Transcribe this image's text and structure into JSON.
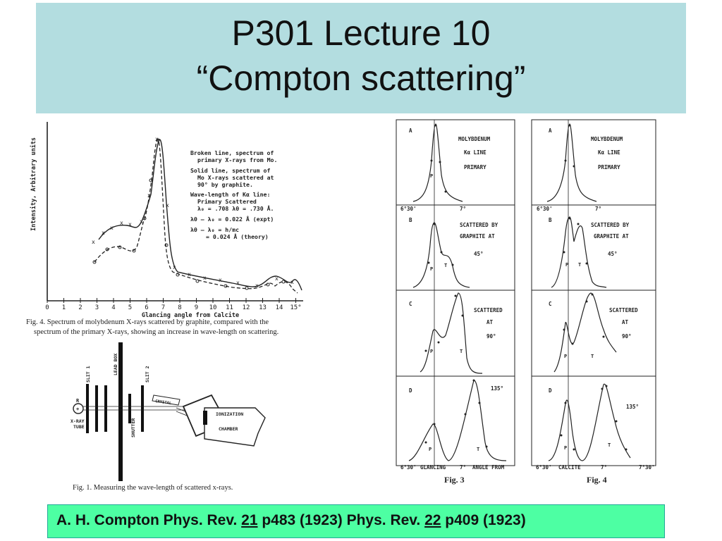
{
  "slide": {
    "title_line1": "P301 Lecture 10",
    "title_line2": "“Compton scattering”"
  },
  "spectrum_plot": {
    "y_axis_label": "Intensity, Arbitrary units",
    "x_axis_label": "Glancing angle from Calcite",
    "x_ticks": [
      "0",
      "1",
      "2",
      "3",
      "4",
      "5",
      "6",
      "7",
      "8",
      "9",
      "10",
      "11",
      "12",
      "13",
      "14",
      "15°"
    ],
    "legend": [
      "Broken line, spectrum of",
      "primary X-rays from Mo.",
      "Solid line, spectrum of",
      "Mo X-rays scattered at",
      "90° by graphite.",
      "Wave-length of Kα line:",
      "Primary   Scattered",
      "λ₀ = .708   λθ = .730 Å.",
      "λθ – λ₀ = 0.022 Å (expt)",
      "λθ – λ₀ = h/mc",
      "= 0.024 Å (theory)"
    ],
    "caption_line1": "Fig. 4.   Spectrum of molybdenum X-rays scattered by graphite, compared with the",
    "caption_line2": "spectrum of the primary X-rays, showing an increase in wave-length on scattering."
  },
  "apparatus": {
    "labels": {
      "slit1": "SLIT 1",
      "lead_box": "LEAD BOX",
      "slit2": "SLIT 2",
      "crystal": "CRYSTAL",
      "shutter": "SHUTTER",
      "ionization": "IONIZATION",
      "chamber": "CHAMBER",
      "xray_tube_1": "X-RAY",
      "xray_tube_2": "TUBE",
      "r": "R"
    },
    "caption": "Fig. 1.    Measuring the wave-length of scattered x-rays."
  },
  "fig3_4": {
    "row_letters": [
      "A",
      "B",
      "C",
      "D"
    ],
    "fig3": {
      "row_texts": [
        [
          "MOLYBDENUM",
          "Kα LINE",
          "PRIMARY"
        ],
        [
          "SCATTERED BY",
          "GRAPHITE AT",
          "45°"
        ],
        [
          "SCATTERED",
          "AT",
          "90°"
        ],
        [
          "135°"
        ]
      ],
      "axis_left": "6°30'",
      "axis_mid": "7°",
      "bottom_left": "GLANCING",
      "bottom_right": "ANGLE FROM",
      "label": "Fig. 3"
    },
    "fig4": {
      "row_texts": [
        [
          "MOLYBDENUM",
          "Kα LINE",
          "PRIMARY"
        ],
        [
          "SCATTERED BY",
          "GRAPHITE AT",
          "45°"
        ],
        [
          "SCATTERED",
          "AT",
          "90°"
        ],
        [
          "135°"
        ]
      ],
      "axis_left": "6°30'",
      "axis_mid": "7°",
      "axis_right": "7°30'",
      "bottom_center": "CALCITE",
      "label": "Fig. 4"
    },
    "peak_labels": {
      "p": "P",
      "t": "T"
    }
  },
  "citation": {
    "part1": "A. H. Compton Phys. Rev. ",
    "vol1": "21",
    "part2": " p483 (1923)  Phys. Rev. ",
    "vol2": "22",
    "part3": " p409 (1923)"
  }
}
